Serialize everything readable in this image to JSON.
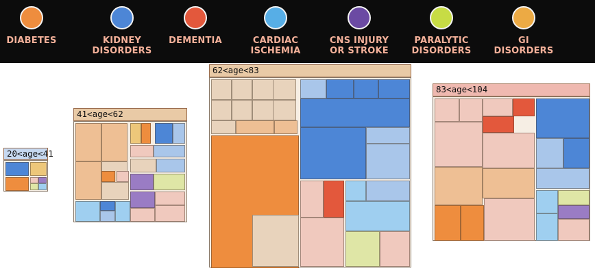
{
  "legend": {
    "items": [
      {
        "label": "DIABETES",
        "color": "#ee8d3e"
      },
      {
        "label": "KIDNEY\nDISORDERS",
        "color": "#4d86d6"
      },
      {
        "label": "DEMENTIA",
        "color": "#e3583c"
      },
      {
        "label": "CARDIAC\nISCHEMIA",
        "color": "#57aee6"
      },
      {
        "label": "CNS INJURY\nOR STROKE",
        "color": "#6b4aa3"
      },
      {
        "label": "PARALYTIC\nDISORDERS",
        "color": "#c7dc45"
      },
      {
        "label": "GI\nDISORDERS",
        "color": "#ecaa44"
      }
    ]
  },
  "groups": [
    {
      "label": "20<age<41",
      "title_bg": "#c6d8f0"
    },
    {
      "label": "41<age<62",
      "title_bg": "#e9caa6"
    },
    {
      "label": "62<age<83",
      "title_bg": "#e9caa6"
    },
    {
      "label": "83<age<104",
      "title_bg": "#efb9b0"
    }
  ]
}
